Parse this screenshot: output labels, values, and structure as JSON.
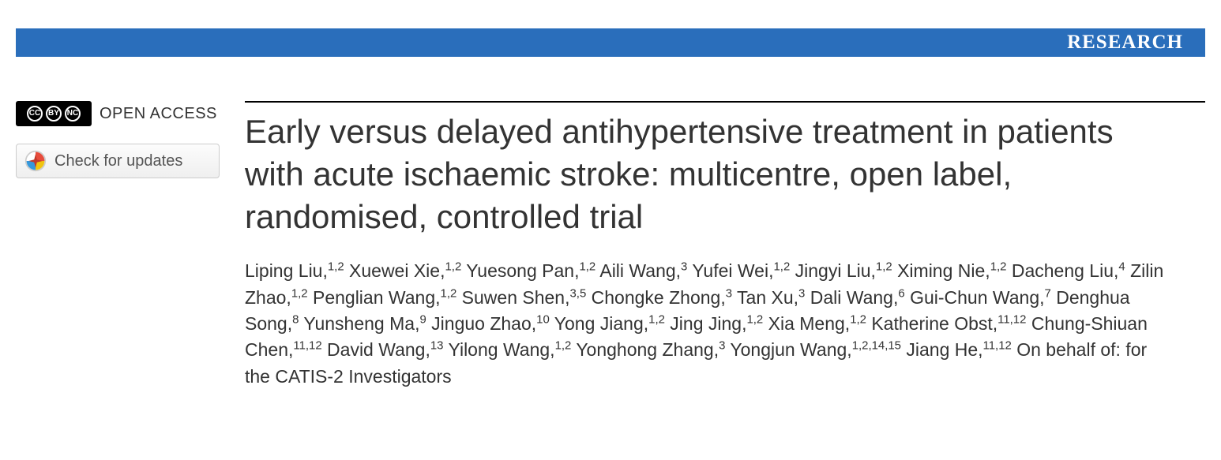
{
  "banner": {
    "label": "RESEARCH",
    "bg_color": "#2a6ebb",
    "text_color": "#ffffff"
  },
  "sidebar": {
    "open_access_label": "OPEN ACCESS",
    "cc_icons": [
      "CC",
      "BY",
      "NC"
    ],
    "check_updates_label": "Check for updates"
  },
  "article": {
    "title": "Early versus delayed antihypertensive treatment in patients with acute ischaemic stroke: multicentre, open label, randomised, controlled trial",
    "authors": [
      {
        "name": "Liping Liu",
        "aff": "1,2"
      },
      {
        "name": "Xuewei Xie",
        "aff": "1,2"
      },
      {
        "name": "Yuesong Pan",
        "aff": "1,2"
      },
      {
        "name": "Aili Wang",
        "aff": "3"
      },
      {
        "name": "Yufei Wei",
        "aff": "1,2"
      },
      {
        "name": "Jingyi Liu",
        "aff": "1,2"
      },
      {
        "name": "Ximing Nie",
        "aff": "1,2"
      },
      {
        "name": "Dacheng Liu",
        "aff": "4"
      },
      {
        "name": "Zilin Zhao",
        "aff": "1,2"
      },
      {
        "name": "Penglian Wang",
        "aff": "1,2"
      },
      {
        "name": "Suwen Shen",
        "aff": "3,5"
      },
      {
        "name": "Chongke Zhong",
        "aff": "3"
      },
      {
        "name": "Tan Xu",
        "aff": "3"
      },
      {
        "name": "Dali Wang",
        "aff": "6"
      },
      {
        "name": "Gui-Chun Wang",
        "aff": "7"
      },
      {
        "name": "Denghua Song",
        "aff": "8"
      },
      {
        "name": "Yunsheng Ma",
        "aff": "9"
      },
      {
        "name": "Jinguo Zhao",
        "aff": "10"
      },
      {
        "name": "Yong Jiang",
        "aff": "1,2"
      },
      {
        "name": "Jing Jing",
        "aff": "1,2"
      },
      {
        "name": "Xia Meng",
        "aff": "1,2"
      },
      {
        "name": "Katherine Obst",
        "aff": "11,12"
      },
      {
        "name": "Chung-Shiuan Chen",
        "aff": "11,12"
      },
      {
        "name": "David Wang",
        "aff": "13"
      },
      {
        "name": "Yilong Wang",
        "aff": "1,2"
      },
      {
        "name": "Yonghong Zhang",
        "aff": "3"
      },
      {
        "name": "Yongjun Wang",
        "aff": "1,2,14,15"
      },
      {
        "name": "Jiang He",
        "aff": "11,12"
      }
    ],
    "behalf_text": "On behalf of: for the CATIS-2 Investigators"
  },
  "style": {
    "title_fontsize": 42,
    "author_fontsize": 23,
    "text_color": "#333333"
  }
}
